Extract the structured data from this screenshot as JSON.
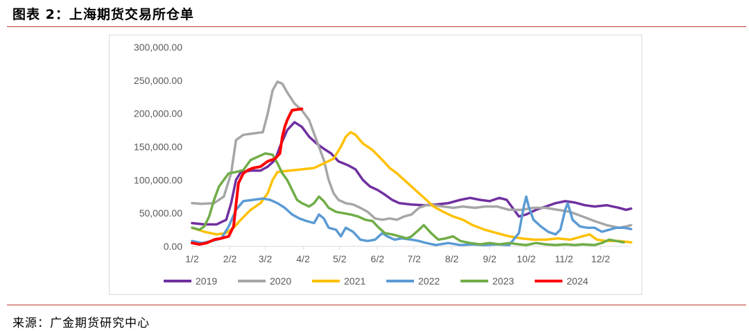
{
  "figure": {
    "title": "图表 2：上海期货交易所仓单",
    "source": "来源：广金期货研究中心"
  },
  "colors": {
    "rule": "#c0392b",
    "axis_text": "#595959",
    "2019": "#7030a0",
    "2020": "#a6a6a6",
    "2021": "#ffc000",
    "2022": "#5b9bd5",
    "2023": "#70ad47",
    "2024": "#ff0000"
  },
  "chart_data": {
    "type": "line",
    "title": "",
    "xlabel": "",
    "ylabel": "",
    "x_unit": "day of year (0 = 1/2)",
    "xlim": [
      0,
      360
    ],
    "ylim": [
      0,
      300000
    ],
    "yticks": [
      0,
      50000,
      100000,
      150000,
      200000,
      250000,
      300000
    ],
    "ytick_labels": [
      "0.00",
      "50,000.00",
      "100,000.00",
      "150,000.00",
      "200,000.00",
      "250,000.00",
      "300,000.00"
    ],
    "xticks": [
      0,
      31,
      60,
      91,
      121,
      152,
      182,
      213,
      244,
      274,
      305,
      335
    ],
    "xtick_labels": [
      "1/2",
      "2/2",
      "3/2",
      "4/2",
      "5/2",
      "6/2",
      "7/2",
      "8/2",
      "9/2",
      "10/2",
      "11/2",
      "12/2"
    ],
    "grid": false,
    "legend": "bottom",
    "series": [
      {
        "name": "2019",
        "points": [
          [
            0,
            35000
          ],
          [
            10,
            33000
          ],
          [
            20,
            33000
          ],
          [
            28,
            40000
          ],
          [
            32,
            65000
          ],
          [
            36,
            100000
          ],
          [
            40,
            112000
          ],
          [
            48,
            114000
          ],
          [
            56,
            114000
          ],
          [
            62,
            120000
          ],
          [
            68,
            130000
          ],
          [
            72,
            150000
          ],
          [
            78,
            175000
          ],
          [
            84,
            187000
          ],
          [
            90,
            180000
          ],
          [
            96,
            165000
          ],
          [
            102,
            155000
          ],
          [
            108,
            147000
          ],
          [
            114,
            140000
          ],
          [
            120,
            128000
          ],
          [
            128,
            122000
          ],
          [
            134,
            116000
          ],
          [
            140,
            100000
          ],
          [
            146,
            90000
          ],
          [
            152,
            85000
          ],
          [
            158,
            78000
          ],
          [
            164,
            70000
          ],
          [
            170,
            65000
          ],
          [
            180,
            63000
          ],
          [
            190,
            62000
          ],
          [
            200,
            63000
          ],
          [
            210,
            65000
          ],
          [
            220,
            70000
          ],
          [
            228,
            73000
          ],
          [
            236,
            70000
          ],
          [
            244,
            68000
          ],
          [
            252,
            73000
          ],
          [
            258,
            70000
          ],
          [
            264,
            55000
          ],
          [
            268,
            45000
          ],
          [
            274,
            48000
          ],
          [
            282,
            55000
          ],
          [
            290,
            60000
          ],
          [
            298,
            65000
          ],
          [
            306,
            68000
          ],
          [
            314,
            66000
          ],
          [
            322,
            62000
          ],
          [
            330,
            60000
          ],
          [
            340,
            62000
          ],
          [
            350,
            58000
          ],
          [
            356,
            55000
          ],
          [
            360,
            57000
          ]
        ]
      },
      {
        "name": "2020",
        "points": [
          [
            0,
            65000
          ],
          [
            8,
            64000
          ],
          [
            18,
            65000
          ],
          [
            26,
            75000
          ],
          [
            32,
            110000
          ],
          [
            36,
            160000
          ],
          [
            42,
            168000
          ],
          [
            50,
            170000
          ],
          [
            58,
            172000
          ],
          [
            62,
            200000
          ],
          [
            66,
            235000
          ],
          [
            70,
            248000
          ],
          [
            74,
            245000
          ],
          [
            78,
            232000
          ],
          [
            84,
            215000
          ],
          [
            90,
            205000
          ],
          [
            96,
            190000
          ],
          [
            100,
            170000
          ],
          [
            104,
            150000
          ],
          [
            108,
            130000
          ],
          [
            112,
            100000
          ],
          [
            116,
            80000
          ],
          [
            120,
            70000
          ],
          [
            126,
            65000
          ],
          [
            132,
            63000
          ],
          [
            138,
            58000
          ],
          [
            144,
            52000
          ],
          [
            150,
            42000
          ],
          [
            156,
            40000
          ],
          [
            162,
            42000
          ],
          [
            168,
            40000
          ],
          [
            174,
            45000
          ],
          [
            180,
            48000
          ],
          [
            186,
            58000
          ],
          [
            192,
            62000
          ],
          [
            198,
            62000
          ],
          [
            206,
            60000
          ],
          [
            214,
            58000
          ],
          [
            222,
            60000
          ],
          [
            232,
            58000
          ],
          [
            240,
            60000
          ],
          [
            250,
            60000
          ],
          [
            260,
            55000
          ],
          [
            270,
            55000
          ],
          [
            280,
            58000
          ],
          [
            290,
            58000
          ],
          [
            300,
            55000
          ],
          [
            310,
            52000
          ],
          [
            320,
            45000
          ],
          [
            330,
            38000
          ],
          [
            340,
            32000
          ],
          [
            350,
            28000
          ],
          [
            356,
            30000
          ],
          [
            360,
            32000
          ]
        ]
      },
      {
        "name": "2021",
        "points": [
          [
            0,
            28000
          ],
          [
            10,
            22000
          ],
          [
            20,
            18000
          ],
          [
            28,
            20000
          ],
          [
            34,
            28000
          ],
          [
            40,
            40000
          ],
          [
            48,
            55000
          ],
          [
            56,
            65000
          ],
          [
            62,
            80000
          ],
          [
            66,
            100000
          ],
          [
            70,
            112000
          ],
          [
            80,
            114000
          ],
          [
            90,
            116000
          ],
          [
            100,
            118000
          ],
          [
            108,
            125000
          ],
          [
            116,
            132000
          ],
          [
            122,
            150000
          ],
          [
            126,
            165000
          ],
          [
            130,
            172000
          ],
          [
            134,
            168000
          ],
          [
            140,
            155000
          ],
          [
            148,
            145000
          ],
          [
            156,
            130000
          ],
          [
            162,
            118000
          ],
          [
            168,
            110000
          ],
          [
            174,
            100000
          ],
          [
            180,
            90000
          ],
          [
            186,
            80000
          ],
          [
            192,
            70000
          ],
          [
            198,
            60000
          ],
          [
            206,
            52000
          ],
          [
            214,
            45000
          ],
          [
            222,
            40000
          ],
          [
            230,
            32000
          ],
          [
            240,
            25000
          ],
          [
            250,
            20000
          ],
          [
            260,
            15000
          ],
          [
            270,
            12000
          ],
          [
            280,
            10000
          ],
          [
            290,
            10000
          ],
          [
            300,
            12000
          ],
          [
            310,
            10000
          ],
          [
            320,
            15000
          ],
          [
            326,
            18000
          ],
          [
            332,
            10000
          ],
          [
            340,
            8000
          ],
          [
            350,
            8000
          ],
          [
            360,
            6000
          ]
        ]
      },
      {
        "name": "2022",
        "points": [
          [
            0,
            8000
          ],
          [
            8,
            5000
          ],
          [
            16,
            8000
          ],
          [
            24,
            12000
          ],
          [
            30,
            30000
          ],
          [
            36,
            55000
          ],
          [
            42,
            68000
          ],
          [
            50,
            70000
          ],
          [
            58,
            72000
          ],
          [
            64,
            70000
          ],
          [
            70,
            65000
          ],
          [
            76,
            58000
          ],
          [
            82,
            48000
          ],
          [
            88,
            42000
          ],
          [
            94,
            38000
          ],
          [
            100,
            35000
          ],
          [
            104,
            48000
          ],
          [
            108,
            42000
          ],
          [
            112,
            28000
          ],
          [
            118,
            25000
          ],
          [
            122,
            15000
          ],
          [
            126,
            28000
          ],
          [
            132,
            22000
          ],
          [
            138,
            10000
          ],
          [
            144,
            8000
          ],
          [
            150,
            10000
          ],
          [
            156,
            20000
          ],
          [
            160,
            15000
          ],
          [
            166,
            10000
          ],
          [
            172,
            12000
          ],
          [
            180,
            10000
          ],
          [
            186,
            8000
          ],
          [
            192,
            5000
          ],
          [
            200,
            2000
          ],
          [
            210,
            5000
          ],
          [
            220,
            2000
          ],
          [
            230,
            3000
          ],
          [
            240,
            2000
          ],
          [
            250,
            3000
          ],
          [
            260,
            2000
          ],
          [
            268,
            20000
          ],
          [
            272,
            60000
          ],
          [
            274,
            75000
          ],
          [
            276,
            60000
          ],
          [
            280,
            40000
          ],
          [
            286,
            30000
          ],
          [
            292,
            22000
          ],
          [
            298,
            18000
          ],
          [
            302,
            25000
          ],
          [
            306,
            55000
          ],
          [
            308,
            65000
          ],
          [
            312,
            40000
          ],
          [
            318,
            30000
          ],
          [
            324,
            28000
          ],
          [
            330,
            28000
          ],
          [
            336,
            22000
          ],
          [
            342,
            25000
          ],
          [
            348,
            28000
          ],
          [
            354,
            28000
          ],
          [
            360,
            26000
          ]
        ]
      },
      {
        "name": "2023",
        "points": [
          [
            0,
            28000
          ],
          [
            6,
            25000
          ],
          [
            10,
            30000
          ],
          [
            14,
            45000
          ],
          [
            18,
            70000
          ],
          [
            22,
            90000
          ],
          [
            26,
            100000
          ],
          [
            30,
            110000
          ],
          [
            36,
            112000
          ],
          [
            42,
            115000
          ],
          [
            48,
            130000
          ],
          [
            54,
            135000
          ],
          [
            60,
            140000
          ],
          [
            66,
            138000
          ],
          [
            70,
            125000
          ],
          [
            74,
            110000
          ],
          [
            78,
            100000
          ],
          [
            82,
            85000
          ],
          [
            86,
            70000
          ],
          [
            90,
            65000
          ],
          [
            96,
            60000
          ],
          [
            100,
            65000
          ],
          [
            104,
            75000
          ],
          [
            108,
            68000
          ],
          [
            112,
            58000
          ],
          [
            118,
            52000
          ],
          [
            124,
            50000
          ],
          [
            130,
            48000
          ],
          [
            136,
            45000
          ],
          [
            142,
            40000
          ],
          [
            148,
            38000
          ],
          [
            152,
            30000
          ],
          [
            158,
            20000
          ],
          [
            164,
            18000
          ],
          [
            170,
            15000
          ],
          [
            176,
            12000
          ],
          [
            180,
            15000
          ],
          [
            186,
            25000
          ],
          [
            190,
            32000
          ],
          [
            196,
            20000
          ],
          [
            202,
            10000
          ],
          [
            208,
            12000
          ],
          [
            214,
            15000
          ],
          [
            220,
            8000
          ],
          [
            228,
            5000
          ],
          [
            236,
            3000
          ],
          [
            244,
            5000
          ],
          [
            252,
            3000
          ],
          [
            260,
            5000
          ],
          [
            268,
            3000
          ],
          [
            274,
            2000
          ],
          [
            282,
            5000
          ],
          [
            290,
            3000
          ],
          [
            298,
            2000
          ],
          [
            306,
            3000
          ],
          [
            314,
            2000
          ],
          [
            320,
            3000
          ],
          [
            330,
            2000
          ],
          [
            336,
            5000
          ],
          [
            342,
            10000
          ],
          [
            348,
            8000
          ],
          [
            354,
            6000
          ]
        ]
      },
      {
        "name": "2024",
        "points": [
          [
            0,
            5000
          ],
          [
            6,
            3000
          ],
          [
            12,
            5000
          ],
          [
            18,
            10000
          ],
          [
            24,
            12000
          ],
          [
            30,
            15000
          ],
          [
            34,
            30000
          ],
          [
            38,
            95000
          ],
          [
            42,
            110000
          ],
          [
            46,
            115000
          ],
          [
            50,
            118000
          ],
          [
            56,
            120000
          ],
          [
            62,
            128000
          ],
          [
            68,
            132000
          ],
          [
            72,
            140000
          ],
          [
            74,
            165000
          ],
          [
            76,
            180000
          ],
          [
            78,
            190000
          ],
          [
            80,
            198000
          ],
          [
            82,
            205000
          ],
          [
            86,
            206000
          ],
          [
            90,
            207000
          ]
        ]
      }
    ]
  }
}
